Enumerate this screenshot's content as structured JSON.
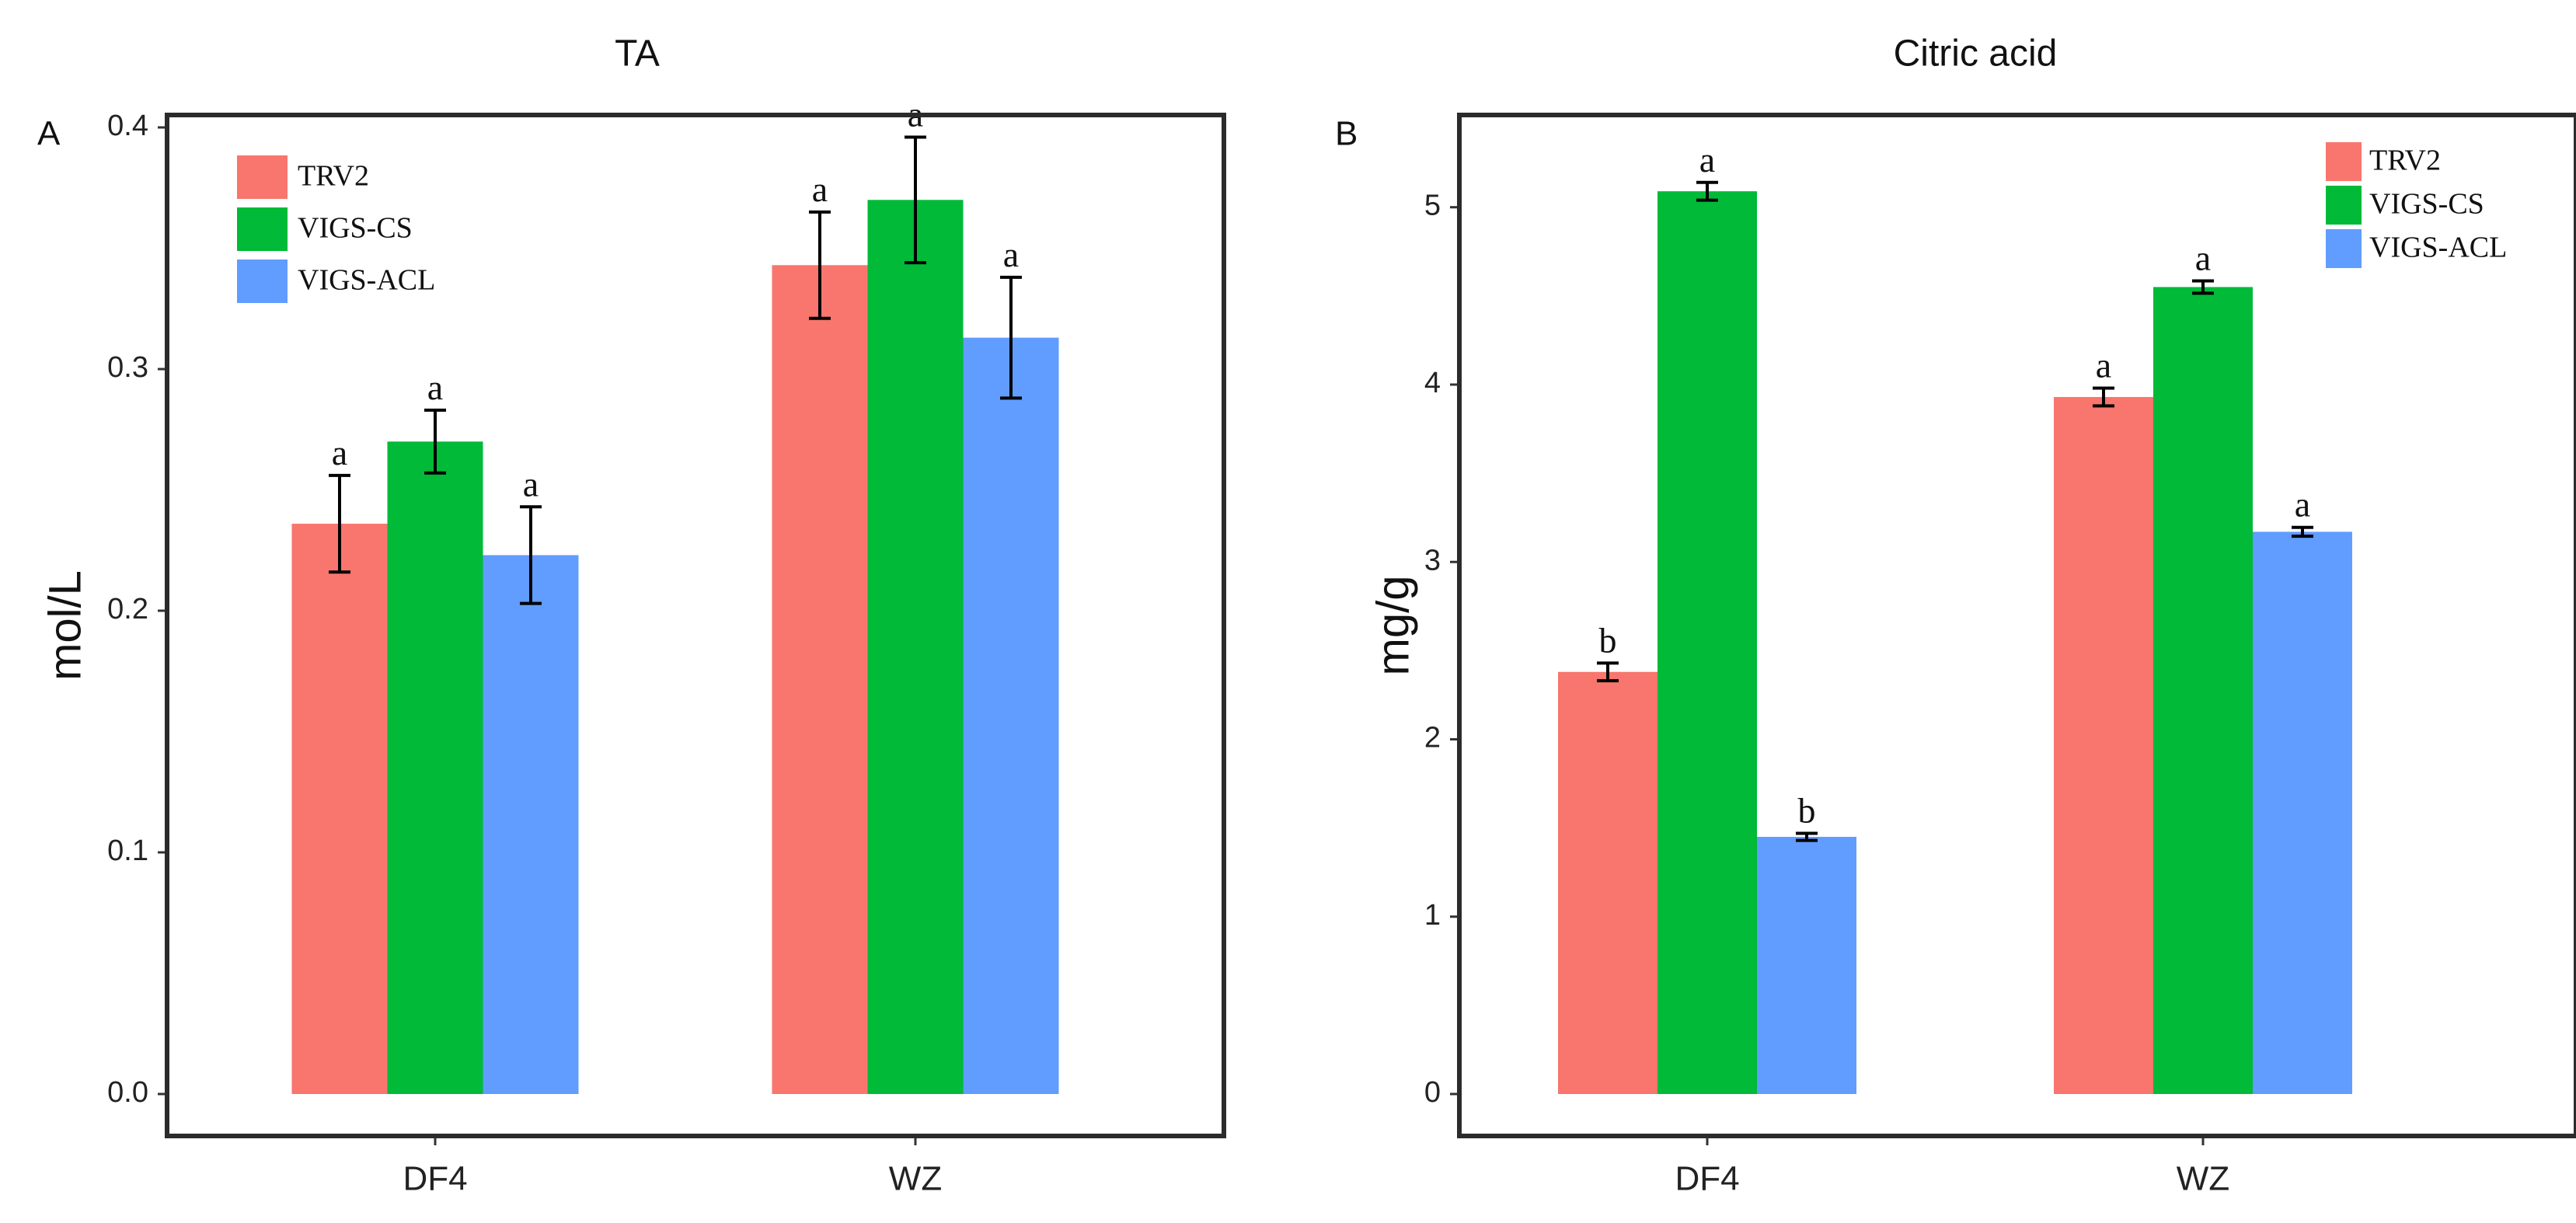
{
  "legend": {
    "entries": [
      "TRV2",
      "VIGS-CS",
      "VIGS-ACL"
    ],
    "colors": [
      "#F8766D",
      "#00BA38",
      "#619CFF"
    ]
  },
  "chart_data": [
    {
      "type": "bar",
      "panel": "A",
      "title": "TA",
      "xlabel": "",
      "ylabel": "mol/L",
      "ylim": [
        0,
        0.4
      ],
      "yticks": [
        "0.0",
        "0.1",
        "0.2",
        "0.3",
        "0.4"
      ],
      "categories": [
        "DF4",
        "WZ"
      ],
      "legend_position": "top-left",
      "series": [
        {
          "name": "TRV2",
          "color": "#F8766D",
          "values": [
            0.236,
            0.343
          ],
          "errors": [
            0.02,
            0.022
          ],
          "labels": [
            "a",
            "a"
          ]
        },
        {
          "name": "VIGS-CS",
          "color": "#00BA38",
          "values": [
            0.27,
            0.37
          ],
          "errors": [
            0.013,
            0.026
          ],
          "labels": [
            "a",
            "a"
          ]
        },
        {
          "name": "VIGS-ACL",
          "color": "#619CFF",
          "values": [
            0.223,
            0.313
          ],
          "errors": [
            0.02,
            0.025
          ],
          "labels": [
            "a",
            "a"
          ]
        }
      ]
    },
    {
      "type": "bar",
      "panel": "B",
      "title": "Citric acid",
      "xlabel": "",
      "ylabel": "mg/g",
      "ylim": [
        0,
        5.45
      ],
      "yticks": [
        "0",
        "1",
        "2",
        "3",
        "4",
        "5"
      ],
      "categories": [
        "DF4",
        "WZ"
      ],
      "legend_position": "top-right",
      "series": [
        {
          "name": "TRV2",
          "color": "#F8766D",
          "values": [
            2.38,
            3.93
          ],
          "errors": [
            0.05,
            0.05
          ],
          "labels": [
            "b",
            "a"
          ]
        },
        {
          "name": "VIGS-CS",
          "color": "#00BA38",
          "values": [
            5.09,
            4.55
          ],
          "errors": [
            0.05,
            0.035
          ],
          "labels": [
            "a",
            "a"
          ]
        },
        {
          "name": "VIGS-ACL",
          "color": "#619CFF",
          "values": [
            1.45,
            3.17
          ],
          "errors": [
            0.02,
            0.025
          ],
          "labels": [
            "b",
            "a"
          ]
        }
      ]
    }
  ]
}
